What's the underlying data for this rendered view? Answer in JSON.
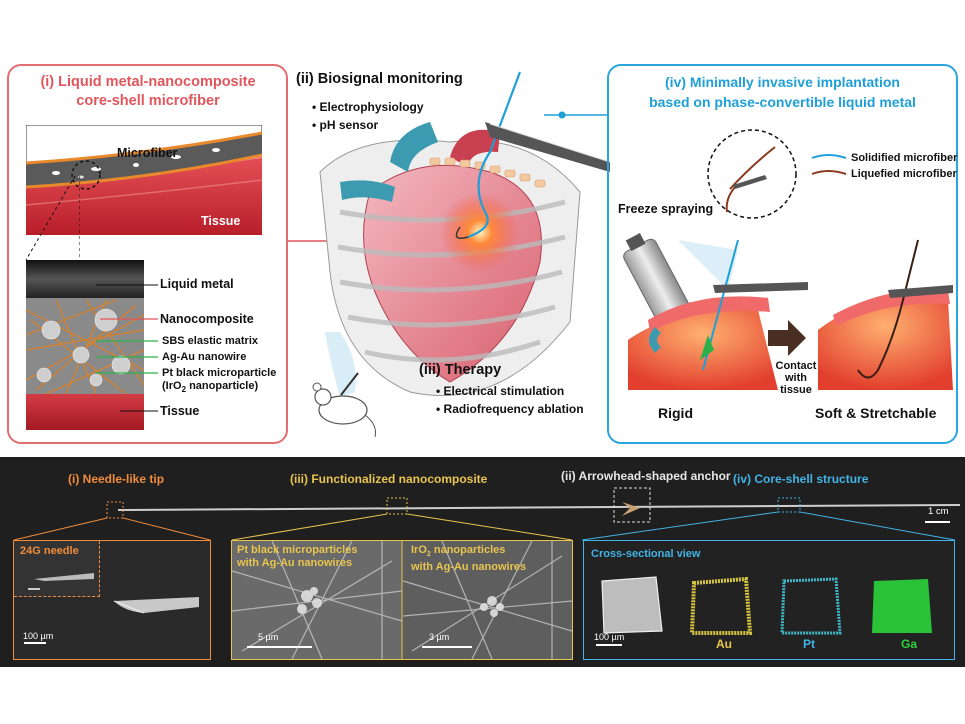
{
  "panel_i": {
    "title_line1": "(i) Liquid metal-nanocomposite",
    "title_line2": "core-shell microfiber",
    "labels": {
      "microfiber": "Microfiber",
      "tissue_top": "Tissue",
      "liquid_metal": "Liquid metal",
      "nanocomposite": "Nanocomposite",
      "sbs": "SBS elastic matrix",
      "agau": "Ag-Au nanowire",
      "pt_line1": "Pt black microparticle",
      "pt_line2_pre": "(IrO",
      "pt_line2_sub": "2",
      "pt_line2_post": " nanoparticle)",
      "tissue_bottom": "Tissue"
    }
  },
  "panel_ii": {
    "title": "(ii) Biosignal monitoring",
    "items": [
      "• Electrophysiology",
      "• pH sensor"
    ]
  },
  "panel_iii": {
    "title": "(iii) Therapy",
    "items": [
      "• Electrical stimulation",
      "• Radiofrequency ablation"
    ]
  },
  "panel_iv": {
    "title_line1": "(iv) Minimally invasive implantation",
    "title_line2": "based on phase-convertible liquid metal",
    "legend_solid": "Solidified microfiber",
    "legend_liquid": "Liquefied microfiber",
    "freeze": "Freeze spraying",
    "contact_line1": "Contact",
    "contact_line2": "with tissue",
    "rigid": "Rigid",
    "soft": "Soft & Stretchable"
  },
  "bottom": {
    "tip": "(i) Needle-like tip",
    "nano": "(iii) Functionalized nanocomposite",
    "anchor": "(ii) Arrowhead-shaped anchor",
    "coreshell": "(iv) Core-shell structure",
    "scale_cm": "1 cm",
    "needle_label": "24G needle",
    "scale_100a": "100 µm",
    "pt_black_line1": "Pt black microparticles",
    "pt_black_line2": "with Ag-Au nanowires",
    "iro_line1_pre": "IrO",
    "iro_line1_sub": "2",
    "iro_line1_post": " nanoparticles",
    "iro_line2": "with Ag-Au nanowires",
    "scale_5um": "5 µm",
    "scale_3um": "3 µm",
    "cross_view": "Cross-sectional view",
    "scale_100b": "100 µm",
    "au": "Au",
    "pt": "Pt",
    "ga": "Ga"
  },
  "colors": {
    "pink": "#e0565c",
    "blue": "#1e9fd8",
    "orange": "#f08c3c",
    "yellow": "#e8c54e",
    "green": "#2bd43c",
    "dark_bg": "#1f1f1f"
  }
}
